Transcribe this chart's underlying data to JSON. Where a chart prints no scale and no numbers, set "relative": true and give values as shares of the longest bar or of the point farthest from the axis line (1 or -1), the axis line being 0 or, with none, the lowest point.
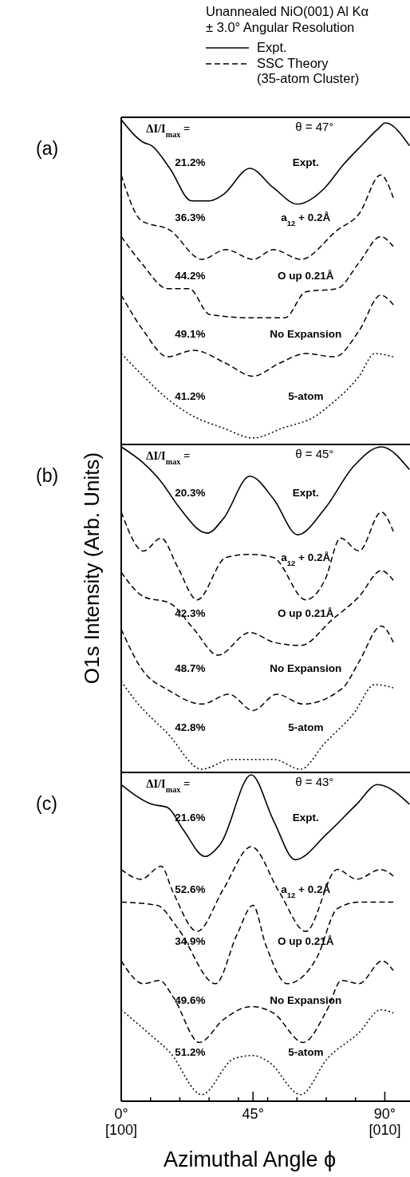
{
  "chart_data": [
    {
      "type": "other",
      "title": "Unannealed NiO(001)   Al Kα",
      "subtitle": "± 3.0° Angular Resolution",
      "ylabel": "O1s Intensity (Arb. Units)",
      "annotations": [
        "Expt.",
        "SSC Theory\n(35-atom Cluster)"
      ]
    },
    {
      "type": "line",
      "xlim": [
        0,
        98.6
      ],
      "tick_labels": false,
      "relative": true,
      "series": [
        {
          "name": "Expt.",
          "color": "#000000",
          "line_style": "solid",
          "x": [
            0,
            7.6,
            10.4,
            16.6,
            24,
            30.2,
            34.9,
            43.9,
            52,
            60.2,
            69.5,
            75.7,
            82,
            87.5,
            90.2,
            98.4
          ],
          "values": [
            1.0,
            0.93,
            0.92,
            0.85,
            0.75,
            0.75,
            0.77,
            0.85,
            0.79,
            0.74,
            0.79,
            0.86,
            0.92,
            0.97,
            0.99,
            0.92
          ]
        },
        {
          "name": "a$_{12}$ + 0.2Å",
          "color": "#000000",
          "line_style": "dashed",
          "x": [
            0,
            6.8,
            16.6,
            27.5,
            35.7,
            45,
            52,
            61.3,
            73.8,
            81.2,
            88.6,
            92.9
          ],
          "values": [
            0.83,
            0.69,
            0.66,
            0.57,
            0.6,
            0.57,
            0.6,
            0.57,
            0.66,
            0.71,
            0.83,
            0.76
          ]
        },
        {
          "name": "O up 0.21Å",
          "color": "#000000",
          "line_style": "dashed",
          "x": [
            0,
            6.8,
            15.8,
            23.2,
            30.2,
            45,
            55.9,
            63,
            73.8,
            81.2,
            88.6,
            92.9
          ],
          "values": [
            0.64,
            0.56,
            0.48,
            0.48,
            0.4,
            0.39,
            0.39,
            0.47,
            0.48,
            0.56,
            0.64,
            0.61
          ]
        },
        {
          "name": "No Expansion",
          "color": "#000000",
          "line_style": "dashed",
          "x": [
            0,
            7.6,
            15.8,
            24.8,
            35.7,
            45,
            54,
            63,
            73,
            81.2,
            88.6,
            92.9
          ],
          "values": [
            0.46,
            0.35,
            0.27,
            0.29,
            0.25,
            0.21,
            0.25,
            0.28,
            0.27,
            0.35,
            0.46,
            0.43
          ]
        },
        {
          "name": "5-atom",
          "color": "#000000",
          "line_style": "dotted",
          "x": [
            0,
            7.6,
            15.8,
            24,
            35,
            45,
            55,
            66.8,
            71.1,
            81.2,
            86.6,
            92.9
          ],
          "values": [
            0.28,
            0.21,
            0.14,
            0.09,
            0.05,
            0.02,
            0.05,
            0.09,
            0.12,
            0.21,
            0.28,
            0.27
          ]
        }
      ],
      "annotations": [
        "(a)",
        "ΔI/I$_{max}$ =",
        "θ = 47°",
        "21.2%",
        "36.3%",
        "44.2%",
        "49.1%",
        "41.2%"
      ]
    },
    {
      "type": "line",
      "xlim": [
        0,
        98.6
      ],
      "tick_labels": false,
      "relative": true,
      "series": [
        {
          "name": "Expt.",
          "color": "#000000",
          "line_style": "solid",
          "x": [
            0,
            7.6,
            13.9,
            19.3,
            29.4,
            34.9,
            43.9,
            52,
            60.2,
            69.5,
            79.3,
            88.8,
            98.4
          ],
          "values": [
            1.0,
            0.95,
            0.89,
            0.82,
            0.735,
            0.78,
            0.91,
            0.84,
            0.73,
            0.81,
            0.94,
            1.0,
            0.93
          ]
        },
        {
          "name": "a$_{12}$ + 0.2Å",
          "color": "#000000",
          "line_style": "dashed",
          "x": [
            0,
            7.6,
            13.6,
            19.3,
            25.9,
            35.7,
            43.9,
            52,
            63,
            69.5,
            74.9,
            81.2,
            88.8,
            92.9
          ],
          "values": [
            0.8,
            0.68,
            0.72,
            0.63,
            0.53,
            0.66,
            0.67,
            0.66,
            0.53,
            0.59,
            0.72,
            0.68,
            0.8,
            0.74
          ]
        },
        {
          "name": "O up 0.21Å",
          "color": "#000000",
          "line_style": "dashed",
          "x": [
            0,
            7.6,
            16.6,
            24.8,
            33,
            43.9,
            52,
            61.3,
            72.1,
            81.2,
            88.8,
            92.9
          ],
          "values": [
            0.615,
            0.54,
            0.52,
            0.44,
            0.36,
            0.43,
            0.4,
            0.39,
            0.47,
            0.54,
            0.62,
            0.59
          ]
        },
        {
          "name": "No Expansion",
          "color": "#000000",
          "line_style": "dashed",
          "x": [
            0,
            6.8,
            16.6,
            27.5,
            36.8,
            45,
            53.1,
            62.1,
            75.7,
            81.2,
            88.8,
            92.9
          ],
          "values": [
            0.44,
            0.32,
            0.25,
            0.21,
            0.24,
            0.19,
            0.24,
            0.21,
            0.26,
            0.34,
            0.45,
            0.4
          ]
        },
        {
          "name": "5-atom",
          "color": "#000000",
          "line_style": "dotted",
          "x": [
            0,
            4.9,
            15.8,
            27.5,
            37.6,
            45,
            52,
            61.3,
            69.5,
            79.3,
            86.6,
            92.9
          ],
          "values": [
            0.28,
            0.22,
            0.12,
            0.01,
            0.04,
            0.04,
            0.04,
            0.01,
            0.09,
            0.18,
            0.27,
            0.26
          ]
        }
      ],
      "annotations": [
        "(b)",
        "ΔI/I$_{max}$ =",
        "θ = 45°",
        "20.3%",
        null,
        "42.3%",
        "48.7%",
        "42.8%"
      ]
    },
    {
      "type": "line",
      "xlabel": "Azimuthal Angle ϕ",
      "xlim": [
        0,
        98.6
      ],
      "tick_labels": "x",
      "relative": true,
      "xticks": [
        {
          "value": 0,
          "label": "0°"
        },
        {
          "value": 10,
          "label": null
        },
        {
          "value": 20,
          "label": null
        },
        {
          "value": 30,
          "label": null
        },
        {
          "value": 40,
          "label": null
        },
        {
          "value": 45,
          "label": "45°"
        },
        {
          "value": 50,
          "label": null
        },
        {
          "value": 60,
          "label": null
        },
        {
          "value": 70,
          "label": null
        },
        {
          "value": 80,
          "label": null
        },
        {
          "value": 90,
          "label": "90°"
        }
      ],
      "series": [
        {
          "name": "Expt.",
          "color": "#000000",
          "line_style": "solid",
          "x": [
            0,
            10.4,
            15.8,
            21.3,
            28.6,
            34,
            44.4,
            52,
            59.4,
            70.3,
            80.4,
            87.5,
            98.4
          ],
          "values": [
            0.97,
            0.91,
            0.9,
            0.83,
            0.75,
            0.79,
            1.0,
            0.86,
            0.74,
            0.82,
            0.91,
            0.97,
            0.91
          ]
        },
        {
          "name": "a$_{12}$ + 0.2Å",
          "color": "#000000",
          "line_style": "dashed",
          "x": [
            0,
            6.8,
            13.6,
            17.7,
            25.9,
            34.9,
            44.4,
            54,
            63,
            73.8,
            80.4,
            88.6,
            92.9
          ],
          "values": [
            0.71,
            0.68,
            0.72,
            0.64,
            0.52,
            0.65,
            0.78,
            0.64,
            0.52,
            0.71,
            0.68,
            0.71,
            0.69
          ]
        },
        {
          "name": "O up 0.21Å",
          "color": "#000000",
          "line_style": "dashed",
          "x": [
            0,
            12.3,
            19.3,
            32.2,
            39.5,
            45,
            49.3,
            56.7,
            66.8,
            73.8,
            81.2,
            88.6,
            92.9
          ],
          "values": [
            0.61,
            0.6,
            0.53,
            0.36,
            0.51,
            0.6,
            0.48,
            0.36,
            0.44,
            0.59,
            0.61,
            0.61,
            0.61
          ]
        },
        {
          "name": "No Expansion",
          "color": "#000000",
          "line_style": "dashed",
          "x": [
            0,
            7.6,
            13.1,
            17.7,
            26.7,
            34.9,
            44.4,
            52,
            62.1,
            70.3,
            75.2,
            81.2,
            89.1,
            92.9
          ],
          "values": [
            0.43,
            0.36,
            0.37,
            0.32,
            0.18,
            0.25,
            0.29,
            0.27,
            0.18,
            0.28,
            0.37,
            0.36,
            0.43,
            0.4
          ]
        },
        {
          "name": "5-atom",
          "color": "#000000",
          "line_style": "dotted",
          "x": [
            0,
            10.4,
            16.6,
            27.5,
            38.4,
            45,
            50.4,
            61.3,
            70.3,
            81.2,
            88.6,
            92.9
          ],
          "values": [
            0.28,
            0.2,
            0.15,
            0.02,
            0.13,
            0.14,
            0.12,
            0.02,
            0.13,
            0.21,
            0.28,
            0.27
          ]
        }
      ],
      "annotations": [
        "(c)",
        "ΔI/I$_{max}$ =",
        "θ = 43°",
        "21.6%",
        "52.6%",
        "34.9%",
        "49.6%",
        "51.2%",
        "[100]",
        "[010]"
      ]
    }
  ]
}
